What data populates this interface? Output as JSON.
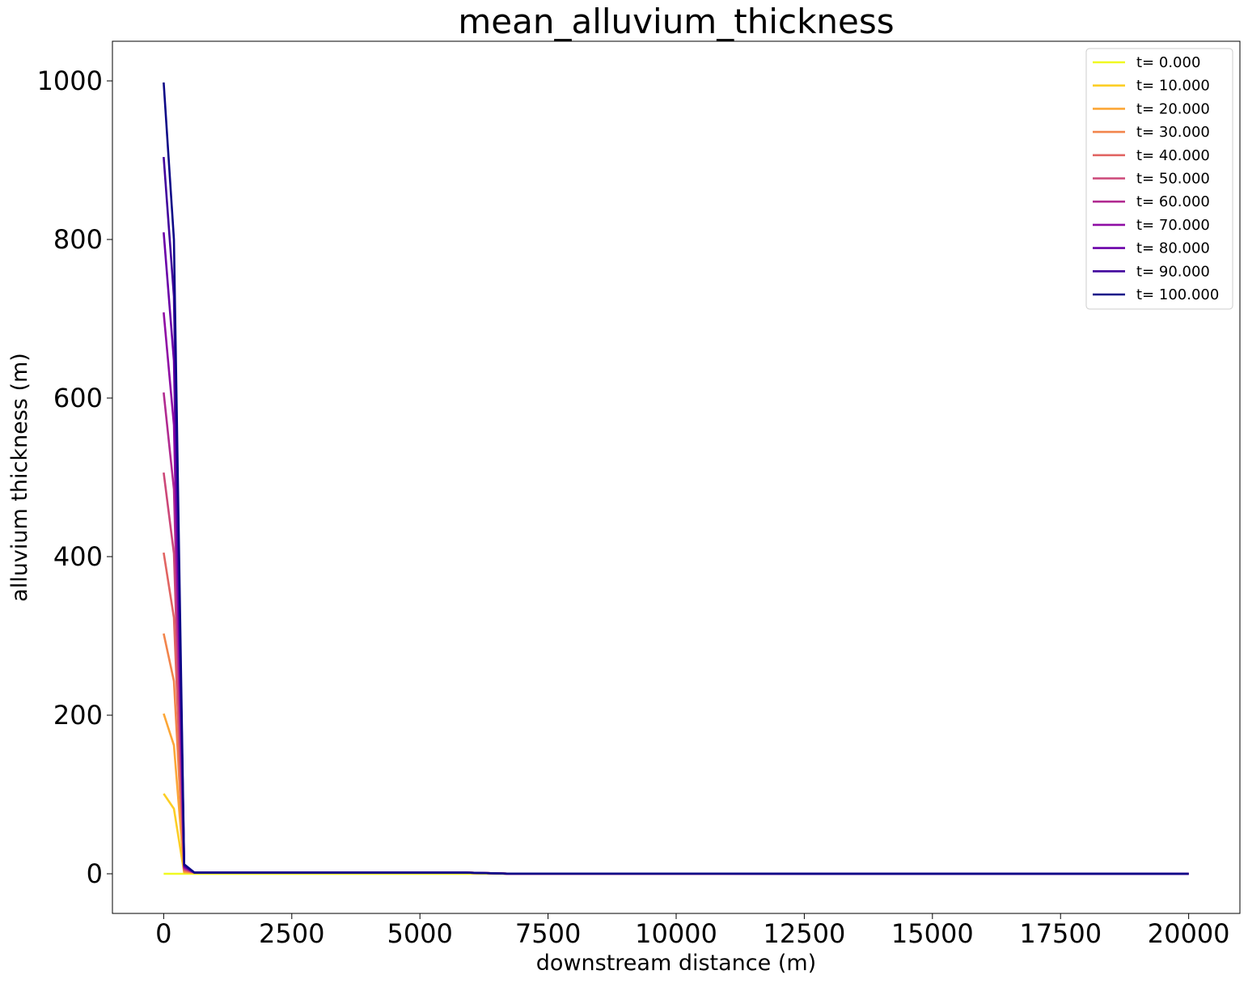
{
  "chart_data": {
    "type": "line",
    "title": "mean_alluvium_thickness",
    "xlabel": "downstream distance (m)",
    "ylabel": "alluvium thickness (m)",
    "xlim": [
      -1000,
      21000
    ],
    "ylim": [
      -50,
      1050
    ],
    "xticks": [
      0,
      2500,
      5000,
      7500,
      10000,
      12500,
      15000,
      17500,
      20000
    ],
    "yticks": [
      0,
      200,
      400,
      600,
      800,
      1000
    ],
    "grid": false,
    "legend_position": "top-right",
    "x": [
      0,
      200,
      400,
      600,
      5900,
      6700,
      20000
    ],
    "series": [
      {
        "name": "t= 0.000",
        "color": "#f0f921",
        "values": [
          0,
          0,
          0,
          0,
          0,
          0,
          0
        ]
      },
      {
        "name": "t= 10.000",
        "color": "#fcce25",
        "values": [
          101,
          82,
          1.2,
          1.5,
          1.5,
          0.2,
          0
        ]
      },
      {
        "name": "t= 20.000",
        "color": "#fca636",
        "values": [
          202,
          162,
          2.4,
          1.5,
          1.5,
          0.2,
          0
        ]
      },
      {
        "name": "t= 30.000",
        "color": "#f2844b",
        "values": [
          303,
          243,
          3.6,
          1.5,
          1.5,
          0.2,
          0
        ]
      },
      {
        "name": "t= 40.000",
        "color": "#e16462",
        "values": [
          405,
          323,
          4.8,
          1.5,
          1.5,
          0.2,
          0
        ]
      },
      {
        "name": "t= 50.000",
        "color": "#cc4778",
        "values": [
          506,
          404,
          6,
          1.5,
          1.5,
          0.2,
          0
        ]
      },
      {
        "name": "t= 60.000",
        "color": "#b12a90",
        "values": [
          607,
          485,
          7.2,
          1.5,
          1.5,
          0.2,
          0
        ]
      },
      {
        "name": "t= 70.000",
        "color": "#8f0da4",
        "values": [
          708,
          566,
          8.4,
          1.5,
          1.5,
          0.2,
          0
        ]
      },
      {
        "name": "t= 80.000",
        "color": "#6a00a8",
        "values": [
          809,
          647,
          9.6,
          1.5,
          1.5,
          0.2,
          0
        ]
      },
      {
        "name": "t= 90.000",
        "color": "#41049d",
        "values": [
          904,
          728,
          10.8,
          1.5,
          1.5,
          0.2,
          0
        ]
      },
      {
        "name": "t= 100.000",
        "color": "#0d0887",
        "values": [
          998,
          800,
          12,
          1.5,
          1.5,
          0.2,
          0
        ]
      }
    ]
  }
}
